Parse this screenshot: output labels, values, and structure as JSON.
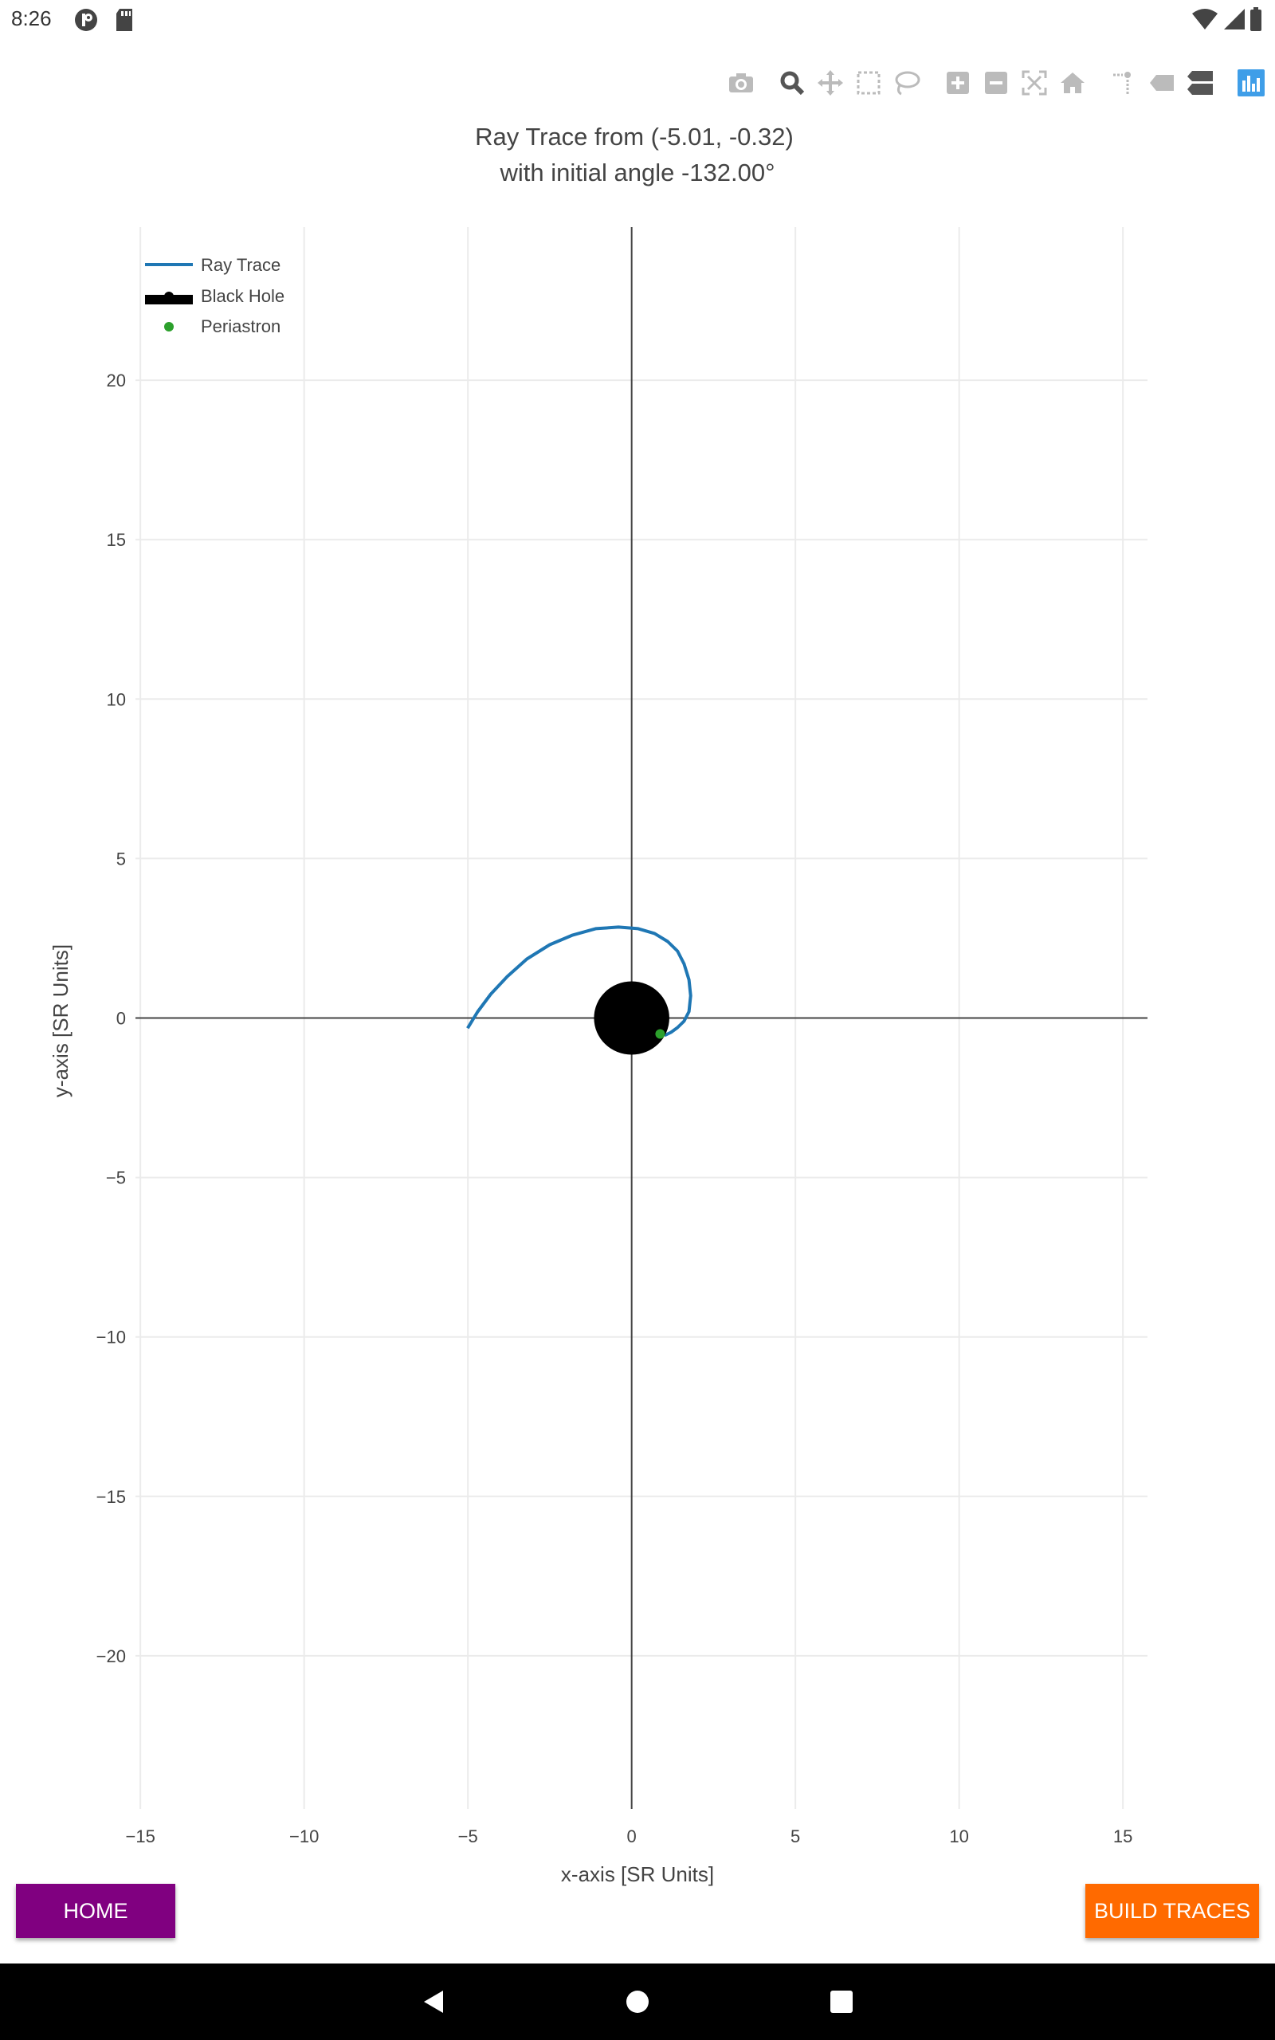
{
  "status_bar": {
    "time": "8:26"
  },
  "toolbar": {
    "buttons": [
      "camera-icon",
      "zoom-icon",
      "pan-icon",
      "box-select-icon",
      "lasso-select-icon",
      "zoom-in-icon",
      "zoom-out-icon",
      "autoscale-icon",
      "reset-axes-icon",
      "spike-lines-icon",
      "hover-closest-icon",
      "hover-compare-icon",
      "plotly-logo-icon"
    ]
  },
  "buttons": {
    "home": "HOME",
    "build_traces": "BUILD TRACES"
  },
  "chart_data": {
    "type": "line",
    "title": "Ray Trace from (-5.01, -0.32)",
    "subtitle": "with initial angle -132.00°",
    "xlabel": "x-axis [SR Units]",
    "ylabel": "y-axis [SR Units]",
    "xlim": [
      -15.15,
      15.75
    ],
    "ylim": [
      -24.8,
      24.8
    ],
    "xticks": [
      -15,
      -10,
      -5,
      0,
      5,
      10,
      15
    ],
    "xtick_labels": [
      "−15",
      "−10",
      "−5",
      "0",
      "5",
      "10",
      "15"
    ],
    "yticks": [
      20,
      15,
      10,
      5,
      0,
      -5,
      -10,
      -15,
      -20
    ],
    "ytick_labels": [
      "20",
      "15",
      "10",
      "5",
      "0",
      "−5",
      "−10",
      "−15",
      "−20"
    ],
    "grid": true,
    "legend_position": "top-left",
    "series": [
      {
        "name": "Ray Trace",
        "color": "#1f77b4",
        "x": [
          -5.01,
          -4.7,
          -4.3,
          -3.8,
          -3.2,
          -2.5,
          -1.8,
          -1.1,
          -0.4,
          0.2,
          0.7,
          1.1,
          1.4,
          1.6,
          1.75,
          1.8,
          1.75,
          1.6,
          1.4,
          1.2,
          1.0
        ],
        "y": [
          -0.32,
          0.2,
          0.75,
          1.3,
          1.85,
          2.3,
          2.6,
          2.8,
          2.85,
          2.8,
          2.65,
          2.4,
          2.1,
          1.7,
          1.2,
          0.7,
          0.2,
          -0.1,
          -0.3,
          -0.45,
          -0.55
        ]
      },
      {
        "name": "Black Hole",
        "color": "#000000",
        "x": [
          0
        ],
        "y": [
          0
        ],
        "radius": 1.15
      },
      {
        "name": "Periastron",
        "color": "#2ca02c",
        "x": [
          0.87
        ],
        "y": [
          -0.5
        ]
      }
    ]
  }
}
